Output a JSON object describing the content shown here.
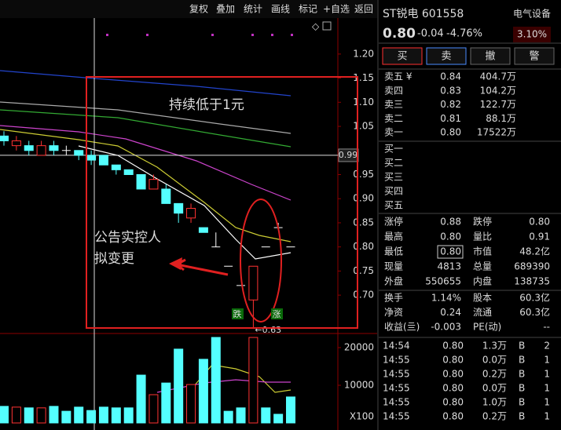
{
  "toolbar": [
    "复权",
    "叠加",
    "统计",
    "画线",
    "标记",
    "+自选",
    "返回"
  ],
  "chart_data": [
    {
      "type": "candlestick",
      "ylim": [
        0.64,
        1.26
      ],
      "yticks": [
        {
          "value": 1.2,
          "label": "1.20"
        },
        1.15,
        {
          "value": 1.1,
          "label": "1.10"
        },
        1.05,
        0.95,
        {
          "value": 0.9,
          "label": "0.90"
        },
        0.85,
        {
          "value": 0.8,
          "label": "0.80"
        },
        0.75,
        {
          "value": 0.7,
          "label": "0.70"
        }
      ],
      "crosshair_value": 0.99,
      "candles": [
        {
          "open": 1.03,
          "close": 1.02,
          "high": 1.04,
          "low": 1.01
        },
        {
          "open": 1.01,
          "close": 1.02,
          "high": 1.03,
          "low": 1.0
        },
        {
          "open": 1.01,
          "close": 1.0,
          "high": 1.02,
          "low": 0.99
        },
        {
          "open": 0.99,
          "close": 1.01,
          "high": 1.02,
          "low": 0.99
        },
        {
          "open": 1.01,
          "close": 1.0,
          "high": 1.02,
          "low": 0.99
        },
        {
          "open": 1.0,
          "close": 1.0,
          "high": 1.01,
          "low": 0.99
        },
        {
          "open": 1.0,
          "close": 0.99,
          "high": 1.0,
          "low": 0.98
        },
        {
          "open": 0.99,
          "close": 0.98,
          "high": 1.0,
          "low": 0.97
        },
        {
          "open": 0.99,
          "close": 0.97,
          "high": 0.99,
          "low": 0.97
        },
        {
          "open": 0.97,
          "close": 0.96,
          "high": 0.97,
          "low": 0.95
        },
        {
          "open": 0.96,
          "close": 0.95,
          "high": 0.96,
          "low": 0.95
        },
        {
          "open": 0.95,
          "close": 0.92,
          "high": 0.95,
          "low": 0.92
        },
        {
          "open": 0.92,
          "close": 0.94,
          "high": 0.95,
          "low": 0.92
        },
        {
          "open": 0.92,
          "close": 0.89,
          "high": 0.93,
          "low": 0.89
        },
        {
          "open": 0.89,
          "close": 0.87,
          "high": 0.89,
          "low": 0.85
        },
        {
          "open": 0.86,
          "close": 0.88,
          "high": 0.89,
          "low": 0.85
        },
        {
          "open": 0.84,
          "close": 0.83,
          "high": 0.84,
          "low": 0.83
        },
        {
          "open": 0.8,
          "close": 0.8,
          "high": 0.83,
          "low": 0.8
        },
        {
          "open": 0.76,
          "close": 0.76,
          "high": 0.76,
          "low": 0.76
        },
        {
          "open": 0.72,
          "close": 0.72,
          "high": 0.72,
          "low": 0.72
        },
        {
          "open": 0.69,
          "close": 0.76,
          "high": 0.76,
          "low": 0.63
        },
        {
          "open": 0.8,
          "close": 0.8,
          "high": 0.8,
          "low": 0.8
        },
        {
          "open": 0.84,
          "close": 0.84,
          "high": 0.85,
          "low": 0.84
        },
        {
          "open": 0.8,
          "close": 0.8,
          "high": 0.8,
          "low": 0.8
        }
      ],
      "low_marker": {
        "value": 0.63,
        "label": "←0.63"
      },
      "annotations": [
        "持续低于1元",
        "公告实控人",
        "拟变更"
      ],
      "limit_labels": [
        "跌",
        "涨"
      ]
    },
    {
      "type": "bar",
      "ylim": [
        0,
        25000
      ],
      "yticks": [
        20000,
        10000
      ],
      "unit_label": "X100",
      "values": [
        4400,
        4200,
        4000,
        4000,
        4400,
        3100,
        4200,
        3300,
        4200,
        4000,
        4000,
        12700,
        7500,
        10600,
        19600,
        10200,
        16900,
        22700,
        3100,
        4000,
        22700,
        4000,
        2300,
        6900
      ]
    }
  ],
  "quote": {
    "name": "ST锐电 601558",
    "sector": "电气设备",
    "price": "0.80",
    "change": "-0.04",
    "change_pct": "-4.76%",
    "sector_pct": "3.10%"
  },
  "buttons": [
    "买",
    "卖",
    "撤",
    "警"
  ],
  "order_book": {
    "sell": [
      [
        "卖五 ¥",
        "0.84",
        "404.7万"
      ],
      [
        "卖四",
        "0.83",
        "104.2万"
      ],
      [
        "卖三",
        "0.82",
        "122.7万"
      ],
      [
        "卖二",
        "0.81",
        "88.1万"
      ],
      [
        "卖一",
        "0.80",
        "17522万"
      ]
    ],
    "buy": [
      "买一",
      "买二",
      "买三",
      "买四",
      "买五"
    ]
  },
  "stats": [
    [
      "涨停",
      "0.88",
      "跌停",
      "0.80"
    ],
    [
      "最高",
      "0.80",
      "量比",
      "0.91"
    ],
    [
      "最低",
      "0.80",
      "市值",
      "48.2亿"
    ],
    [
      "现量",
      "4813",
      "总量",
      "689390"
    ],
    [
      "外盘",
      "550655",
      "内盘",
      "138735"
    ],
    [
      "换手",
      "1.14%",
      "股本",
      "60.3亿"
    ],
    [
      "净资",
      "0.24",
      "流通",
      "60.3亿"
    ],
    [
      "收益(亖)",
      "-0.003",
      "PE(动)",
      "--"
    ]
  ],
  "trades": [
    [
      "14:54",
      "0.80",
      "1.3万",
      "B",
      "2"
    ],
    [
      "14:55",
      "0.80",
      "0.0万",
      "B",
      "1"
    ],
    [
      "14:55",
      "0.80",
      "0.2万",
      "B",
      "1"
    ],
    [
      "14:55",
      "0.80",
      "0.0万",
      "B",
      "1"
    ],
    [
      "14:55",
      "0.80",
      "1.0万",
      "B",
      "1"
    ],
    [
      "14:55",
      "0.80",
      "0.2万",
      "B",
      "1"
    ]
  ]
}
